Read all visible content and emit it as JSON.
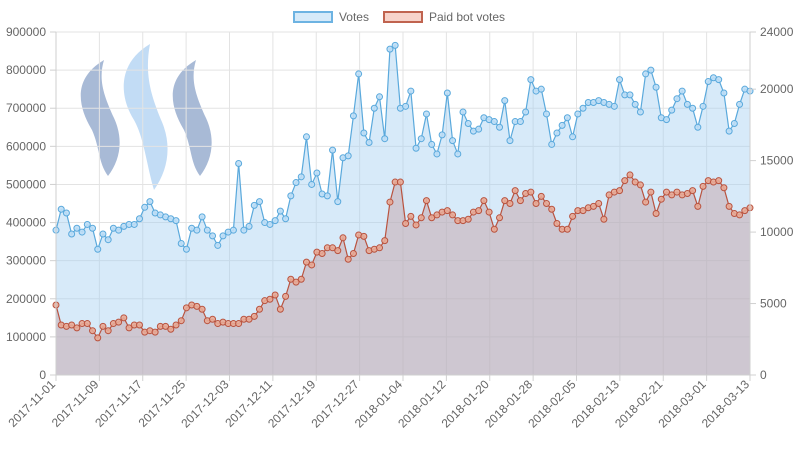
{
  "chart_data": {
    "type": "line",
    "legend": [
      {
        "name": "Votes",
        "fill": "#cfe6f8",
        "stroke": "#5aa9dc"
      },
      {
        "name": "Paid bot votes",
        "fill": "#f6c7bd",
        "stroke": "#b9533f"
      }
    ],
    "x_ticks": [
      "2017-11-01",
      "2017-11-09",
      "2017-11-17",
      "2017-11-25",
      "2017-12-03",
      "2017-12-11",
      "2017-12-19",
      "2017-12-27",
      "2018-01-04",
      "2018-01-12",
      "2018-01-20",
      "2018-01-28",
      "2018-02-05",
      "2018-02-13",
      "2018-02-21",
      "2018-03-01",
      "2018-03-13"
    ],
    "y_left_ticks": [
      "0",
      "100000",
      "200000",
      "300000",
      "400000",
      "500000",
      "600000",
      "700000",
      "800000",
      "900000"
    ],
    "y_right_ticks": [
      "0",
      "5000",
      "10000",
      "15000",
      "20000",
      "24000"
    ],
    "y_left_lim": [
      0,
      900000
    ],
    "y_right_lim": [
      0,
      24000
    ],
    "series": [
      {
        "name": "Votes",
        "axis": "left",
        "color": "#5aa9dc",
        "values": [
          380000,
          435000,
          425000,
          370000,
          385000,
          375000,
          395000,
          385000,
          330000,
          370000,
          355000,
          385000,
          380000,
          390000,
          395000,
          395000,
          410000,
          440000,
          455000,
          425000,
          420000,
          415000,
          410000,
          405000,
          345000,
          330000,
          385000,
          380000,
          415000,
          380000,
          365000,
          340000,
          365000,
          375000,
          380000,
          555000,
          380000,
          390000,
          445000,
          455000,
          400000,
          395000,
          405000,
          430000,
          410000,
          470000,
          505000,
          520000,
          625000,
          500000,
          530000,
          475000,
          470000,
          590000,
          455000,
          570000,
          575000,
          680000,
          790000,
          635000,
          610000,
          700000,
          730000,
          620000,
          855000,
          865000,
          700000,
          705000,
          745000,
          595000,
          620000,
          685000,
          605000,
          580000,
          630000,
          740000,
          615000,
          580000,
          690000,
          660000,
          640000,
          645000,
          675000,
          670000,
          665000,
          650000,
          720000,
          615000,
          665000,
          665000,
          690000,
          775000,
          745000,
          750000,
          685000,
          605000,
          635000,
          655000,
          675000,
          625000,
          685000,
          700000,
          715000,
          715000,
          720000,
          715000,
          710000,
          705000,
          775000,
          735000,
          735000,
          710000,
          690000,
          790000,
          800000,
          755000,
          675000,
          670000,
          695000,
          725000,
          745000,
          710000,
          700000,
          650000,
          705000,
          770000,
          780000,
          775000,
          740000,
          640000,
          660000,
          710000,
          750000,
          745000
        ]
      },
      {
        "name": "Paid bot votes",
        "axis": "right",
        "color": "#b9533f",
        "values": [
          4900,
          3500,
          3400,
          3500,
          3300,
          3600,
          3600,
          3100,
          2600,
          3400,
          3100,
          3600,
          3700,
          4000,
          3300,
          3500,
          3500,
          3000,
          3100,
          3000,
          3400,
          3400,
          3200,
          3500,
          3800,
          4700,
          4900,
          4800,
          4600,
          3800,
          3900,
          3600,
          3700,
          3600,
          3600,
          3600,
          3900,
          3900,
          4100,
          4600,
          5200,
          5300,
          5600,
          4600,
          5500,
          6700,
          6500,
          6700,
          7900,
          7700,
          8600,
          8500,
          8900,
          8900,
          8700,
          9600,
          8100,
          8500,
          9800,
          9700,
          8700,
          8800,
          8900,
          9400,
          12100,
          13500,
          13500,
          10600,
          11100,
          10500,
          11000,
          12200,
          11000,
          11200,
          11400,
          11500,
          11200,
          10800,
          10800,
          10900,
          11400,
          11500,
          12200,
          11400,
          10200,
          11000,
          12200,
          12000,
          12900,
          12200,
          12700,
          12800,
          12000,
          12500,
          12000,
          11600,
          10600,
          10200,
          10200,
          11100,
          11500,
          11500,
          11700,
          11800,
          12000,
          10900,
          12600,
          12800,
          12900,
          13600,
          14000,
          13500,
          13300,
          12100,
          12800,
          11300,
          12300,
          12800,
          12600,
          12800,
          12600,
          12700,
          12900,
          11800,
          13200,
          13600,
          13500,
          13600,
          13100,
          11800,
          11300,
          11200,
          11500,
          11700
        ]
      }
    ]
  }
}
